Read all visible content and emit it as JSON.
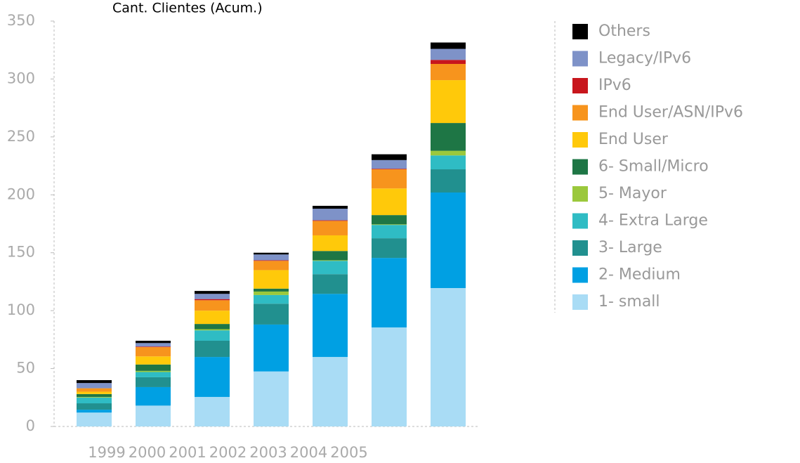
{
  "chart_data": {
    "type": "stacked_bar",
    "title": "Cant. Clientes (Acum.)",
    "categories": [
      "1999",
      "2000",
      "2001",
      "2002",
      "2003",
      "2004",
      "2005"
    ],
    "ylim": [
      0,
      350
    ],
    "yticks": [
      0,
      50,
      100,
      150,
      200,
      250,
      300,
      350
    ],
    "series": [
      {
        "name": "1- small",
        "color": "#a9dcf5",
        "values": [
          12,
          18,
          25.5,
          47.5,
          60,
          85.5,
          119.5
        ]
      },
      {
        "name": "2- Medium",
        "color": "#00a0e3",
        "values": [
          2.5,
          16,
          34.5,
          40.5,
          54.5,
          60,
          82.5
        ]
      },
      {
        "name": "3- Large",
        "color": "#21908f",
        "values": [
          5.5,
          8.5,
          14,
          18,
          17,
          17,
          20
        ]
      },
      {
        "name": "4- Extra Large",
        "color": "#2fbcc4",
        "values": [
          5,
          4.5,
          9,
          7.5,
          11.5,
          11.5,
          12
        ]
      },
      {
        "name": "5- Mayor",
        "color": "#9bc83c",
        "values": [
          0.5,
          1,
          1,
          3,
          0.5,
          0.5,
          4
        ]
      },
      {
        "name": "6- Small/Micro",
        "color": "#1e7645",
        "values": [
          2.5,
          5.5,
          4.5,
          2.5,
          8,
          8,
          24
        ]
      },
      {
        "name": "End User",
        "color": "#ffc90a",
        "values": [
          2,
          7,
          11.5,
          16,
          13.5,
          23,
          37
        ]
      },
      {
        "name": "End User/ASN/IPv6",
        "color": "#f7941d",
        "values": [
          3,
          8,
          9,
          8,
          12.5,
          16.5,
          14
        ]
      },
      {
        "name": "IPv6",
        "color": "#c8161d",
        "values": [
          0,
          0.5,
          1,
          0.5,
          0.5,
          0.5,
          3.5
        ]
      },
      {
        "name": "Legacy/IPv6",
        "color": "#7e92c8",
        "values": [
          4.5,
          3,
          4.5,
          5,
          10,
          7.5,
          9.5
        ]
      },
      {
        "name": "Others",
        "color": "#000000",
        "values": [
          2.5,
          2,
          2.5,
          1.5,
          2.5,
          5,
          5.5
        ]
      }
    ]
  }
}
